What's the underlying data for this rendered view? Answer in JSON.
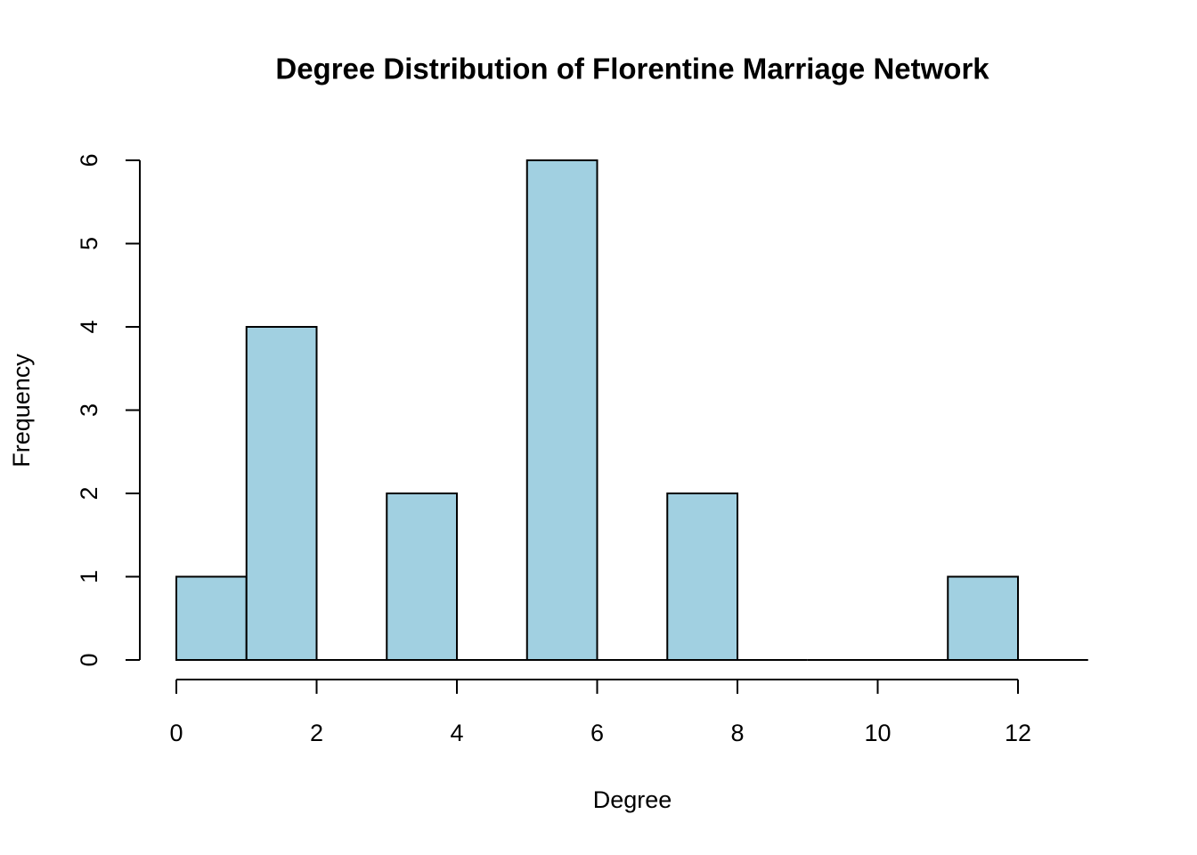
{
  "chart_data": {
    "type": "histogram",
    "title": "Degree Distribution of Florentine Marriage Network",
    "x_label": "Degree",
    "y_label": "Frequency",
    "bins": [
      0,
      1,
      2,
      3,
      4,
      5,
      6,
      7,
      8,
      9,
      10,
      11,
      12,
      13
    ],
    "values": [
      1,
      4,
      0,
      2,
      0,
      6,
      0,
      2,
      0,
      0,
      0,
      1,
      0
    ],
    "color": "#a1d0e1",
    "xlim": [
      0,
      13
    ],
    "xticks": [
      0,
      2,
      4,
      6,
      8,
      10,
      12
    ],
    "ylim": [
      0,
      6
    ],
    "yticks": [
      0,
      1,
      2,
      3,
      4,
      5,
      6
    ]
  }
}
